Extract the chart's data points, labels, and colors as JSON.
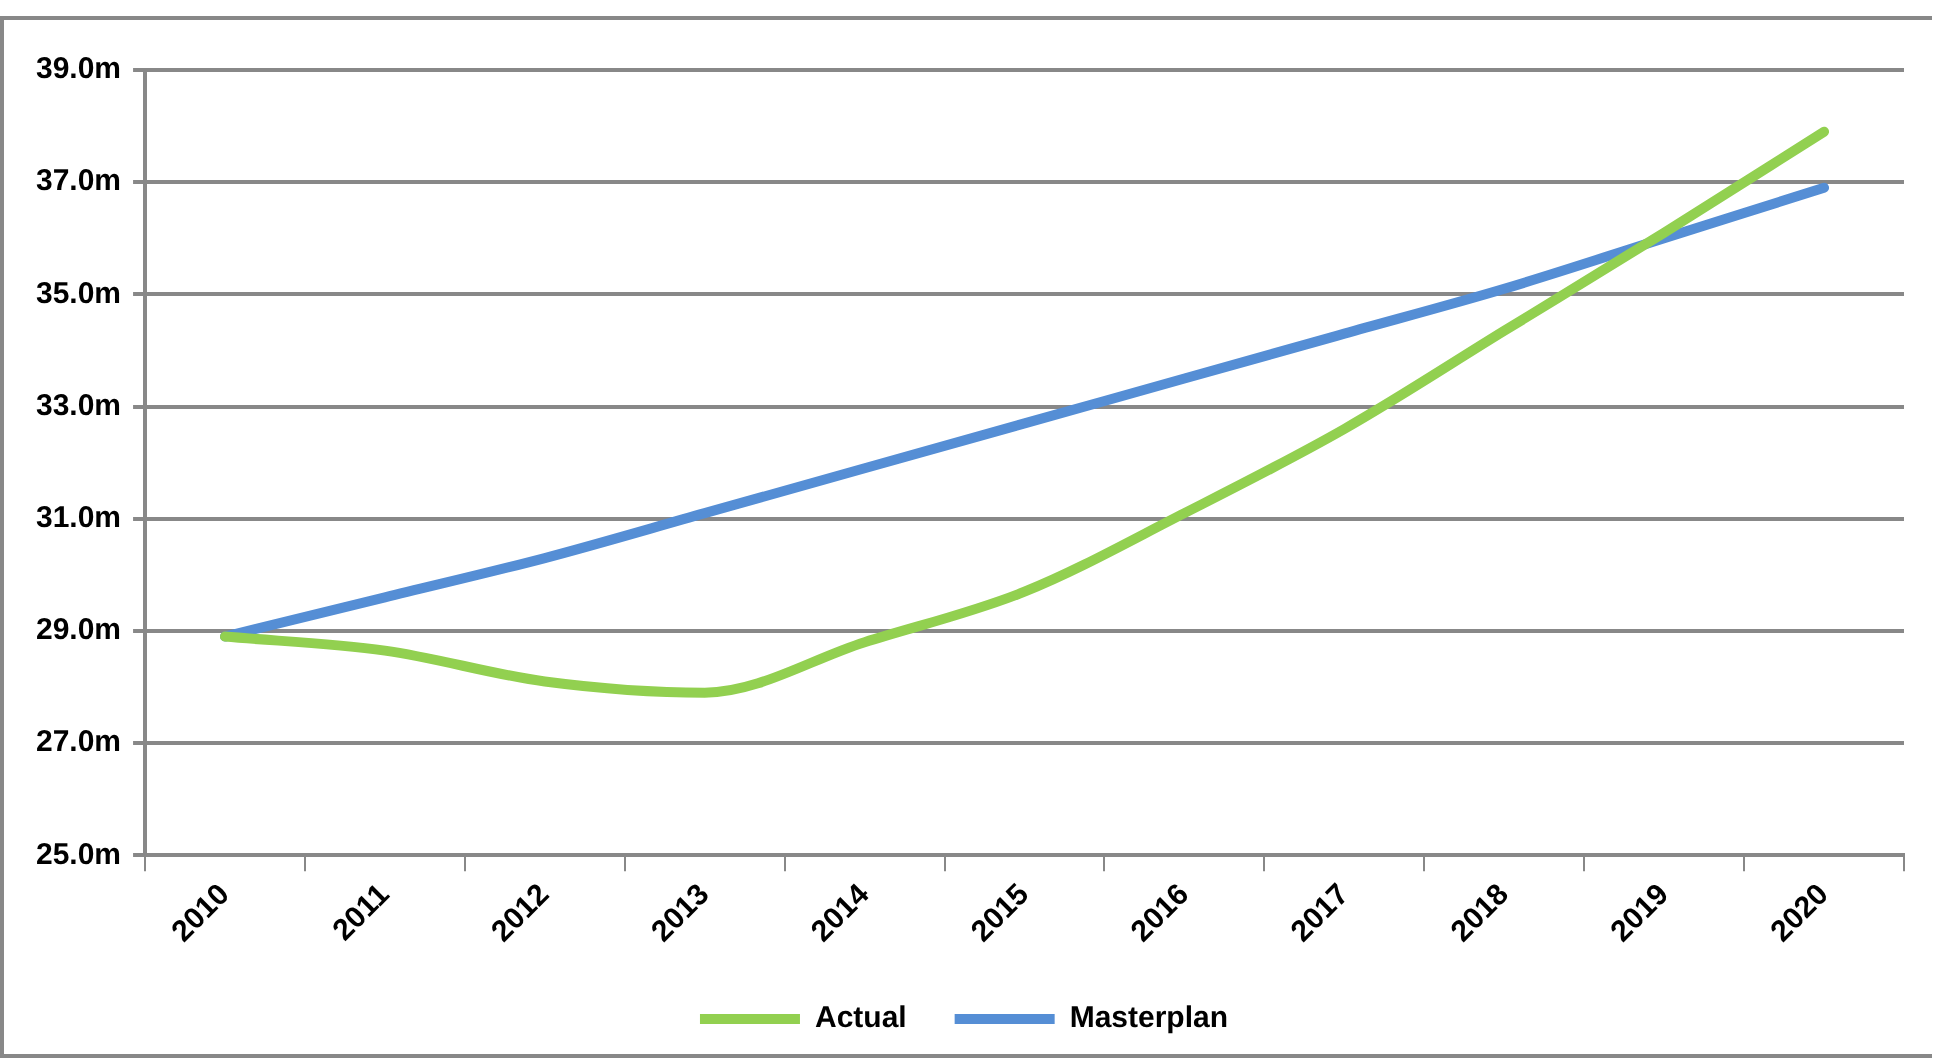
{
  "chart_data": {
    "type": "line",
    "categories": [
      "2010",
      "2011",
      "2012",
      "2013",
      "2014",
      "2015",
      "2016",
      "2017",
      "2018",
      "2019",
      "2020"
    ],
    "series": [
      {
        "name": "Actual",
        "color": "#92d050",
        "values": [
          28.9,
          28.65,
          28.1,
          27.9,
          28.8,
          29.7,
          31.1,
          32.6,
          34.35,
          36.1,
          37.9
        ]
      },
      {
        "name": "Masterplan",
        "color": "#558ed5",
        "values": [
          28.9,
          29.6,
          30.3,
          31.1,
          31.9,
          32.7,
          33.5,
          34.3,
          35.1,
          36.0,
          36.9
        ]
      }
    ],
    "ylim": [
      25,
      39
    ],
    "yticks": [
      {
        "value": 25,
        "label": "25.0m"
      },
      {
        "value": 27,
        "label": "27.0m"
      },
      {
        "value": 29,
        "label": "29.0m"
      },
      {
        "value": 31,
        "label": "31.0m"
      },
      {
        "value": 33,
        "label": "33.0m"
      },
      {
        "value": 35,
        "label": "35.0m"
      },
      {
        "value": 37,
        "label": "37.0m"
      },
      {
        "value": 39,
        "label": "39.0m"
      }
    ],
    "grid": "y",
    "legend": "bottom",
    "marker": "none",
    "line_style": "solid"
  }
}
